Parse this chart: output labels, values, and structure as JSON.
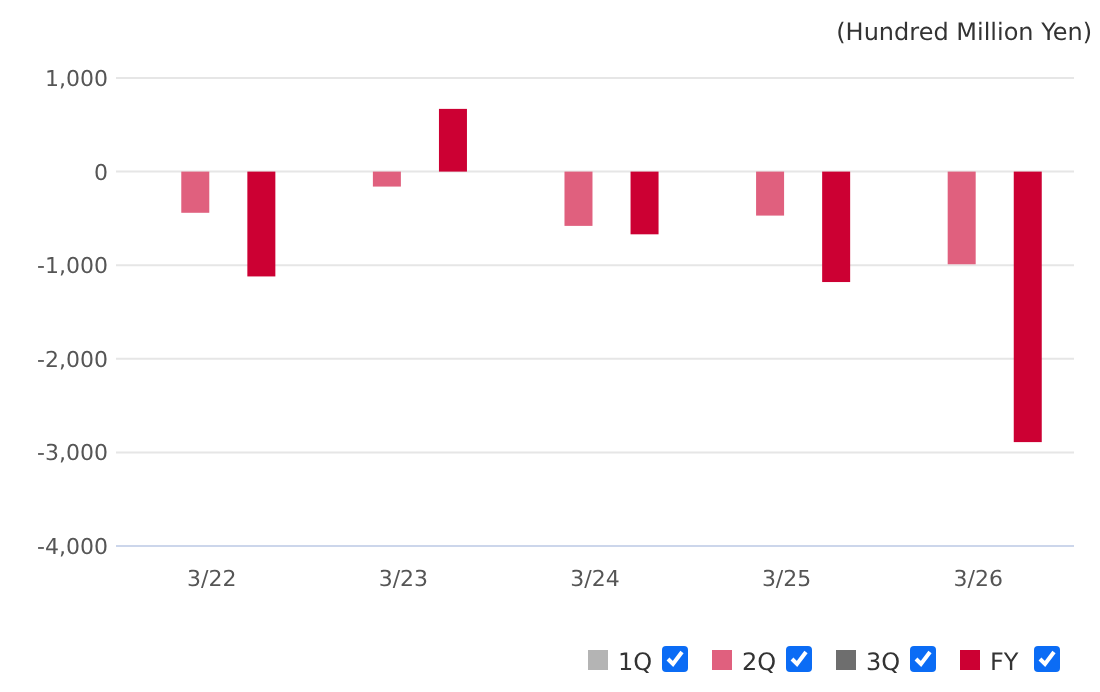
{
  "chart_data": {
    "type": "bar",
    "ylabel": "(Hundred Million Yen)",
    "categories": [
      "3/22",
      "3/23",
      "3/24",
      "3/25",
      "3/26"
    ],
    "series": [
      {
        "name": "1Q",
        "color": "#b4b4b4",
        "values": [
          null,
          null,
          null,
          null,
          null
        ]
      },
      {
        "name": "2Q",
        "color": "#e0607e",
        "values": [
          -440,
          -160,
          -580,
          -470,
          -990
        ]
      },
      {
        "name": "3Q",
        "color": "#6e6e6e",
        "values": [
          null,
          null,
          null,
          null,
          null
        ]
      },
      {
        "name": "FY",
        "color": "#cc0033",
        "values": [
          -1120,
          670,
          -670,
          -1180,
          -2890
        ]
      }
    ],
    "ylim": [
      -4000,
      1000
    ],
    "yticks": [
      {
        "value": -4000,
        "label": "-4,000"
      },
      {
        "value": -3000,
        "label": "-3,000"
      },
      {
        "value": -2000,
        "label": "-2,000"
      },
      {
        "value": -1000,
        "label": "-1,000"
      },
      0,
      {
        "value": 1000,
        "label": "1,000"
      }
    ],
    "grid": "y",
    "legend": "bottom right"
  }
}
